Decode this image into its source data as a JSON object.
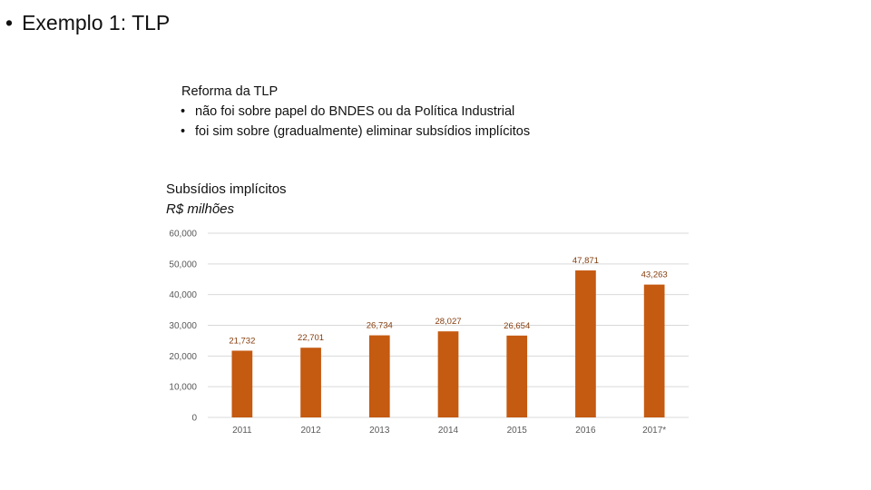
{
  "slide": {
    "bullet": "•",
    "title": "Exemplo 1: TLP"
  },
  "reform": {
    "heading": "Reforma da TLP",
    "points": [
      "não foi sobre papel do BNDES ou da Política Industrial",
      "foi sim sobre (gradualmente) eliminar subsídios implícitos"
    ]
  },
  "colors": {
    "bar": "#c55a11",
    "label": "#843c0c",
    "grid": "#d9d9d9"
  },
  "chart_data": {
    "type": "bar",
    "title": "Subsídios implícitos",
    "ylabel": "R$ milhões",
    "xlabel": "",
    "categories": [
      "2011",
      "2012",
      "2013",
      "2014",
      "2015",
      "2016",
      "2017*"
    ],
    "values": [
      21732,
      22701,
      26734,
      28027,
      26654,
      47871,
      43263
    ],
    "data_labels": [
      "21,732",
      "22,701",
      "26,734",
      "28,027",
      "26,654",
      "47,871",
      "43,263"
    ],
    "ylim": [
      0,
      60000
    ],
    "yticks": [
      0,
      10000,
      20000,
      30000,
      40000,
      50000,
      60000
    ],
    "ytick_labels": [
      "0",
      "10,000",
      "20,000",
      "30,000",
      "40,000",
      "50,000",
      "60,000"
    ],
    "grid": true,
    "legend": "none"
  }
}
